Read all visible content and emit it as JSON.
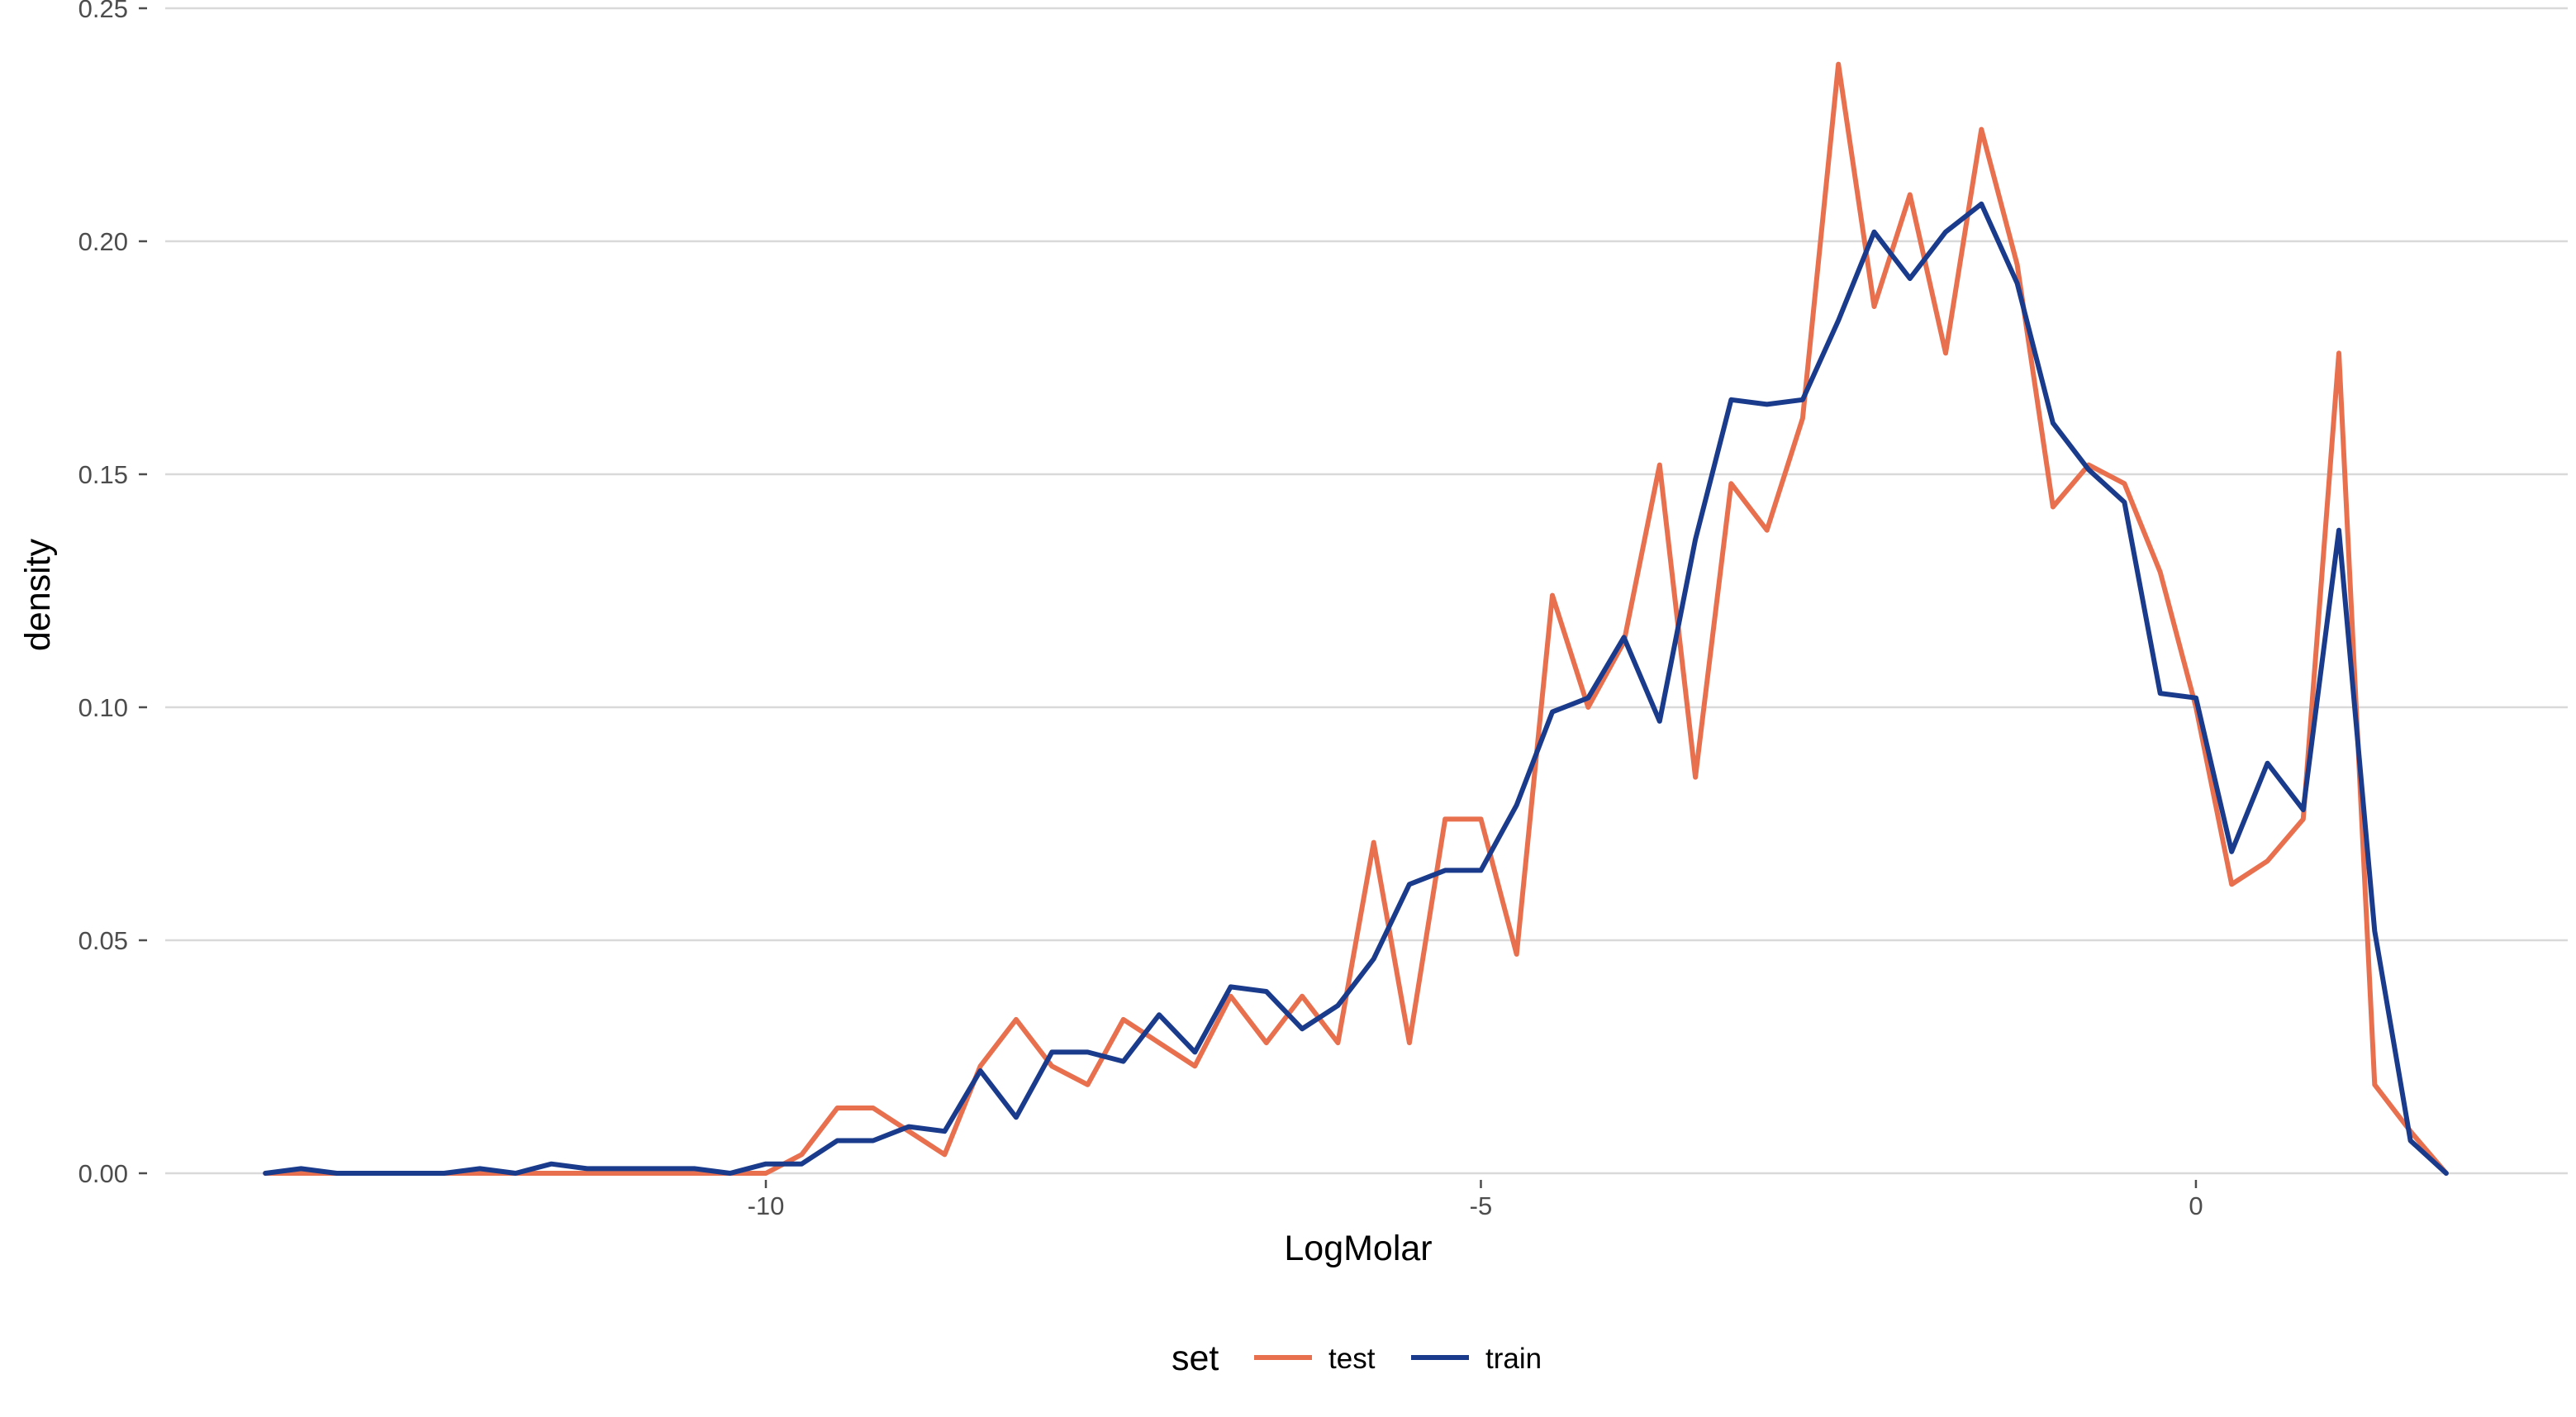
{
  "chart_data": {
    "type": "line",
    "xlabel": "LogMolar",
    "ylabel": "density",
    "xlim": [
      -14.2,
      2.6
    ],
    "ylim": [
      0,
      0.25
    ],
    "x_ticks": [
      -10,
      -5,
      0
    ],
    "x_tick_labels": [
      "-10",
      "-5",
      "0"
    ],
    "y_ticks": [
      0,
      0.05,
      0.1,
      0.15,
      0.2,
      0.25
    ],
    "y_tick_labels": [
      "0.00",
      "0.05",
      "0.10",
      "0.15",
      "0.20",
      "0.25"
    ],
    "grid": "horizontal",
    "legend": {
      "title": "set",
      "placement": "bottom"
    },
    "series": [
      {
        "name": "test",
        "color": "#E8704F",
        "x": [
          -13.5,
          -13.25,
          -13.0,
          -12.75,
          -12.5,
          -12.25,
          -12.0,
          -11.75,
          -11.5,
          -11.25,
          -11.0,
          -10.75,
          -10.5,
          -10.25,
          -10.0,
          -9.75,
          -9.5,
          -9.25,
          -9.0,
          -8.75,
          -8.5,
          -8.25,
          -8.0,
          -7.75,
          -7.5,
          -7.25,
          -7.0,
          -6.75,
          -6.5,
          -6.25,
          -6.0,
          -5.75,
          -5.5,
          -5.25,
          -5.0,
          -4.75,
          -4.5,
          -4.25,
          -4.0,
          -3.75,
          -3.5,
          -3.25,
          -3.0,
          -2.75,
          -2.5,
          -2.25,
          -2.0,
          -1.75,
          -1.5,
          -1.25,
          -1.0,
          -0.75,
          -0.5,
          -0.25,
          0.0,
          0.25,
          0.5,
          0.75,
          1.0,
          1.25,
          1.5,
          1.75
        ],
        "y": [
          0,
          0,
          0,
          0,
          0,
          0,
          0,
          0,
          0,
          0,
          0,
          0,
          0,
          0,
          0,
          0.004,
          0.014,
          0.014,
          0.009,
          0.004,
          0.023,
          0.033,
          0.023,
          0.019,
          0.033,
          0.028,
          0.023,
          0.038,
          0.028,
          0.038,
          0.028,
          0.071,
          0.028,
          0.076,
          0.076,
          0.047,
          0.124,
          0.1,
          0.114,
          0.152,
          0.085,
          0.148,
          0.138,
          0.162,
          0.238,
          0.186,
          0.21,
          0.176,
          0.224,
          0.195,
          0.143,
          0.152,
          0.148,
          0.129,
          0.1,
          0.062,
          0.067,
          0.076,
          0.176,
          0.019,
          0.009,
          0
        ]
      },
      {
        "name": "train",
        "color": "#1A3B8B",
        "x": [
          -13.5,
          -13.25,
          -13.0,
          -12.75,
          -12.5,
          -12.25,
          -12.0,
          -11.75,
          -11.5,
          -11.25,
          -11.0,
          -10.75,
          -10.5,
          -10.25,
          -10.0,
          -9.75,
          -9.5,
          -9.25,
          -9.0,
          -8.75,
          -8.5,
          -8.25,
          -8.0,
          -7.75,
          -7.5,
          -7.25,
          -7.0,
          -6.75,
          -6.5,
          -6.25,
          -6.0,
          -5.75,
          -5.5,
          -5.25,
          -5.0,
          -4.75,
          -4.5,
          -4.25,
          -4.0,
          -3.75,
          -3.5,
          -3.25,
          -3.0,
          -2.75,
          -2.5,
          -2.25,
          -2.0,
          -1.75,
          -1.5,
          -1.25,
          -1.0,
          -0.75,
          -0.5,
          -0.25,
          0.0,
          0.25,
          0.5,
          0.75,
          1.0,
          1.25,
          1.5,
          1.75
        ],
        "y": [
          0,
          0.001,
          0,
          0,
          0,
          0,
          0.001,
          0,
          0.002,
          0.001,
          0.001,
          0.001,
          0.001,
          0,
          0.002,
          0.002,
          0.007,
          0.007,
          0.01,
          0.009,
          0.022,
          0.012,
          0.026,
          0.026,
          0.024,
          0.034,
          0.026,
          0.04,
          0.039,
          0.031,
          0.036,
          0.046,
          0.062,
          0.065,
          0.065,
          0.079,
          0.099,
          0.102,
          0.115,
          0.097,
          0.136,
          0.166,
          0.165,
          0.166,
          0.183,
          0.202,
          0.192,
          0.202,
          0.208,
          0.191,
          0.161,
          0.151,
          0.144,
          0.103,
          0.102,
          0.069,
          0.088,
          0.078,
          0.138,
          0.052,
          0.007,
          0
        ]
      }
    ]
  }
}
